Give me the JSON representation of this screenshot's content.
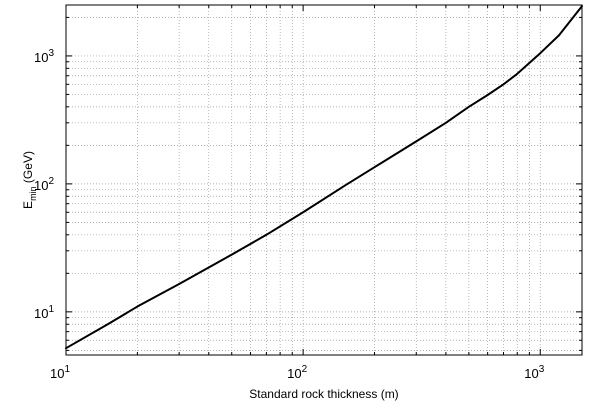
{
  "chart_data": {
    "type": "line",
    "title": "",
    "xlabel": "Standard rock thickness (m)",
    "ylabel": {
      "main": "E",
      "subscript": "min",
      "unit": "(GeV)"
    },
    "x_scale": "log",
    "y_scale": "log",
    "xlim": [
      10,
      1500
    ],
    "ylim": [
      4.6,
      2500
    ],
    "grid": true,
    "x_ticks": [
      {
        "base": "10",
        "exp": "1",
        "value": 10
      },
      {
        "base": "10",
        "exp": "2",
        "value": 100
      },
      {
        "base": "10",
        "exp": "3",
        "value": 1000
      }
    ],
    "y_ticks": [
      {
        "base": "10",
        "exp": "1",
        "value": 10
      },
      {
        "base": "10",
        "exp": "2",
        "value": 100
      },
      {
        "base": "10",
        "exp": "3",
        "value": 1000
      }
    ],
    "series": [
      {
        "color": "#000000",
        "x": [
          10,
          15,
          20,
          30,
          50,
          70,
          100,
          150,
          200,
          300,
          400,
          500,
          600,
          700,
          800,
          1000,
          1200,
          1500
        ],
        "y": [
          5.2,
          8.0,
          11,
          16.5,
          28,
          40,
          60,
          97,
          135,
          215,
          300,
          400,
          495,
          600,
          725,
          1050,
          1450,
          2450
        ]
      }
    ]
  }
}
